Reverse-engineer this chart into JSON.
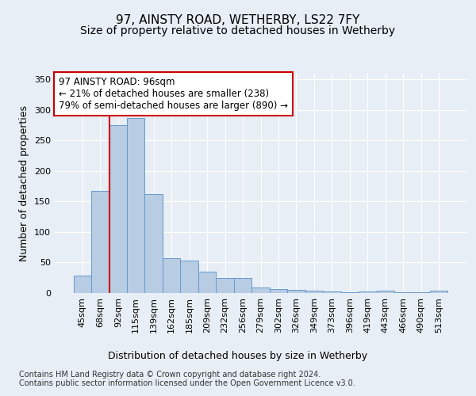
{
  "title": "97, AINSTY ROAD, WETHERBY, LS22 7FY",
  "subtitle": "Size of property relative to detached houses in Wetherby",
  "xlabel": "Distribution of detached houses by size in Wetherby",
  "ylabel": "Number of detached properties",
  "categories": [
    "45sqm",
    "68sqm",
    "92sqm",
    "115sqm",
    "139sqm",
    "162sqm",
    "185sqm",
    "209sqm",
    "232sqm",
    "256sqm",
    "279sqm",
    "302sqm",
    "326sqm",
    "349sqm",
    "373sqm",
    "396sqm",
    "419sqm",
    "443sqm",
    "466sqm",
    "490sqm",
    "513sqm"
  ],
  "values": [
    28,
    167,
    275,
    287,
    162,
    57,
    53,
    35,
    25,
    25,
    9,
    6,
    5,
    4,
    2,
    1,
    3,
    4,
    1,
    1,
    4
  ],
  "bar_color": "#b8cce4",
  "bar_edge_color": "#6699cc",
  "red_line_index": 2,
  "annotation_text": "97 AINSTY ROAD: 96sqm\n← 21% of detached houses are smaller (238)\n79% of semi-detached houses are larger (890) →",
  "annotation_box_color": "#ffffff",
  "annotation_box_edge": "#cc0000",
  "bg_color": "#e8eef5",
  "plot_bg_color": "#e8eef5",
  "grid_color": "#ffffff",
  "title_fontsize": 11,
  "subtitle_fontsize": 10,
  "axis_label_fontsize": 9,
  "tick_fontsize": 8,
  "footer_text": "Contains HM Land Registry data © Crown copyright and database right 2024.\nContains public sector information licensed under the Open Government Licence v3.0.",
  "ylim": [
    0,
    360
  ],
  "yticks": [
    0,
    50,
    100,
    150,
    200,
    250,
    300,
    350
  ]
}
